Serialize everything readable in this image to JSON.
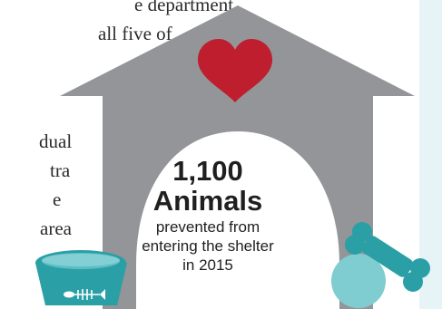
{
  "article_lines": [
    "e department",
    "all five of",
    "dual",
    "tra",
    "e",
    "area"
  ],
  "stat": {
    "number": "1,100",
    "unit": "Animals",
    "line1": "prevented from",
    "line2": "entering the shelter",
    "line3": "in 2015"
  },
  "colors": {
    "house": "#939598",
    "heart": "#be1e2d",
    "teal": "#2a9fa6",
    "ball": "#7fcdd1",
    "sidebar": "#e6f4f8"
  },
  "icons": [
    "heart-icon",
    "pet-bowl-icon",
    "fish-bone-icon",
    "dog-bone-icon",
    "ball-icon"
  ]
}
